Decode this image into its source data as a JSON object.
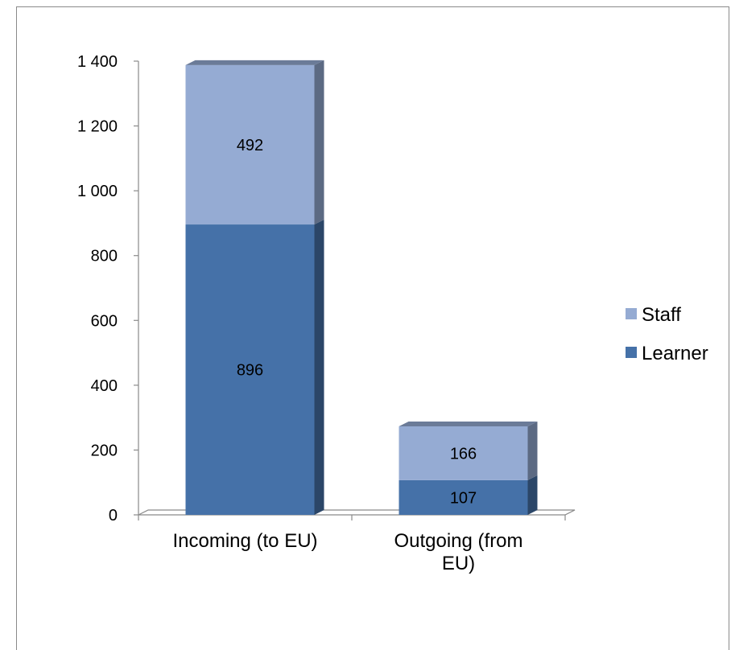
{
  "chart_data": {
    "type": "bar",
    "stacked": true,
    "three_d": true,
    "categories": [
      [
        "Incoming (to EU)"
      ],
      [
        "Outgoing (from",
        "EU)"
      ]
    ],
    "series": [
      {
        "name": "Learner",
        "values": [
          896,
          107
        ],
        "color": "#4571a8"
      },
      {
        "name": "Staff",
        "values": [
          492,
          166
        ],
        "color": "#95abd3"
      }
    ],
    "ylim": [
      0,
      1400
    ],
    "yticks": [
      0,
      200,
      400,
      600,
      800,
      1000,
      1200,
      1400
    ],
    "ytick_labels": [
      "0",
      "200",
      "400",
      "600",
      "800",
      "1 000",
      "1 200",
      "1 400"
    ],
    "legend": {
      "position": "right",
      "order": [
        "Staff",
        "Learner"
      ]
    },
    "grid": false,
    "title": "",
    "xlabel": "",
    "ylabel": ""
  }
}
